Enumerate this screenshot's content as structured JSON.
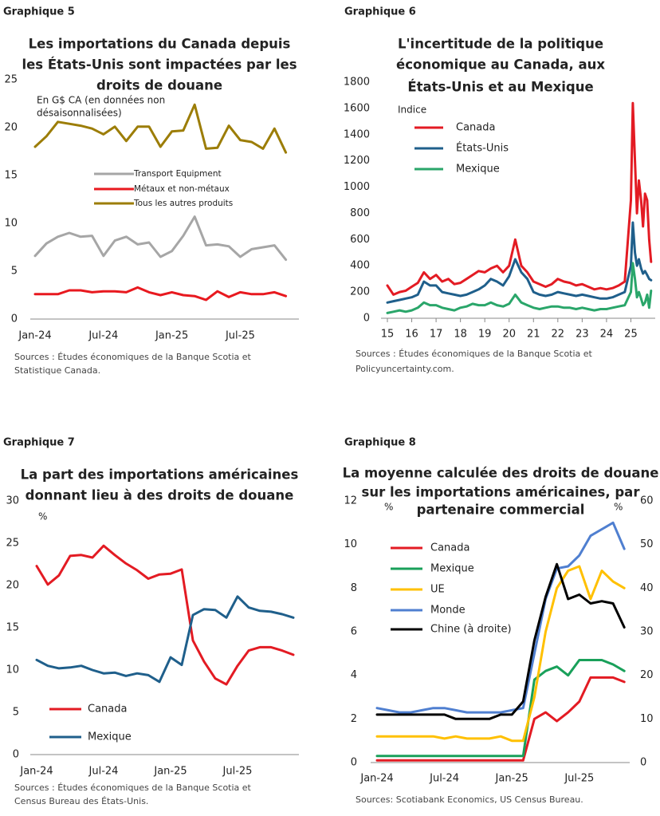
{
  "chart_data": [
    {
      "type": "line",
      "label": "Graphique 5",
      "title": [
        "Les importations du Canada depuis",
        "les États-Unis sont impactées par les",
        "droits de douane"
      ],
      "unit": [
        "En G$ CA (en données non",
        "désaisonnalisées)"
      ],
      "categories": [
        "Jan-24",
        null,
        null,
        null,
        null,
        null,
        "Jul-24",
        null,
        null,
        null,
        null,
        null,
        "Jan-25",
        null,
        null,
        null,
        null,
        null,
        "Jul-25",
        null,
        null,
        null,
        null
      ],
      "series": [
        {
          "name": "Transport Equipment",
          "color": "#a6a6a6",
          "values": [
            6.6,
            7.9,
            8.6,
            9.0,
            8.6,
            8.7,
            6.6,
            8.2,
            8.6,
            7.8,
            8.0,
            6.5,
            7.1,
            8.7,
            10.7,
            7.7,
            7.8,
            7.6,
            6.5,
            7.3,
            7.5,
            7.7,
            6.2
          ]
        },
        {
          "name": "Métaux et non-métaux",
          "color": "#e8191f",
          "values": [
            2.6,
            2.6,
            2.6,
            3.0,
            3.0,
            2.8,
            2.9,
            2.9,
            2.8,
            3.3,
            2.8,
            2.5,
            2.8,
            2.5,
            2.4,
            2.0,
            2.9,
            2.3,
            2.8,
            2.6,
            2.6,
            2.8,
            2.4
          ]
        },
        {
          "name": "Tous les autres produits",
          "color": "#9c7d07",
          "values": [
            18.0,
            19.1,
            20.6,
            20.4,
            20.2,
            19.9,
            19.3,
            20.1,
            18.6,
            20.1,
            20.1,
            18.0,
            19.6,
            19.7,
            22.4,
            17.8,
            17.9,
            20.2,
            18.7,
            18.5,
            17.8,
            19.9,
            17.4
          ]
        }
      ],
      "ylim": [
        0,
        25
      ],
      "yticks": [
        0,
        5,
        10,
        15,
        20,
        25
      ],
      "sources": [
        "Sources : Études économiques de la Banque Scotia et",
        "Statistique Canada."
      ]
    },
    {
      "type": "line",
      "label": "Graphique 6",
      "title": [
        "L'incertitude de la politique",
        "économique au Canada, aux",
        "États-Unis et au Mexique"
      ],
      "unit": [
        "Indice"
      ],
      "x": [
        15,
        15.25,
        15.5,
        15.75,
        16,
        16.25,
        16.5,
        16.75,
        17,
        17.25,
        17.5,
        17.75,
        18,
        18.25,
        18.5,
        18.75,
        19,
        19.25,
        19.5,
        19.75,
        20,
        20.25,
        20.5,
        20.75,
        21,
        21.25,
        21.5,
        21.75,
        22,
        22.25,
        22.5,
        22.75,
        23,
        23.25,
        23.5,
        23.75,
        24,
        24.25,
        24.5,
        24.75,
        25,
        25.08,
        25.17,
        25.25,
        25.33,
        25.42,
        25.5,
        25.58,
        25.67,
        25.75,
        25.83
      ],
      "series": [
        {
          "name": "Canada",
          "color": "#e31b23",
          "values": [
            250,
            180,
            200,
            210,
            240,
            270,
            350,
            300,
            330,
            280,
            300,
            260,
            270,
            300,
            330,
            360,
            350,
            380,
            400,
            350,
            400,
            600,
            400,
            350,
            280,
            260,
            240,
            260,
            300,
            280,
            270,
            250,
            260,
            240,
            220,
            230,
            220,
            230,
            250,
            280,
            900,
            1640,
            1200,
            800,
            1050,
            900,
            700,
            950,
            900,
            600,
            430
          ]
        },
        {
          "name": "États-Unis",
          "color": "#1f5f8b",
          "values": [
            120,
            130,
            140,
            150,
            160,
            180,
            280,
            250,
            250,
            200,
            190,
            180,
            170,
            180,
            200,
            220,
            250,
            300,
            280,
            250,
            320,
            450,
            350,
            300,
            200,
            180,
            170,
            180,
            200,
            190,
            180,
            170,
            180,
            170,
            160,
            150,
            150,
            160,
            180,
            200,
            400,
            730,
            500,
            400,
            450,
            380,
            340,
            360,
            330,
            300,
            290
          ]
        },
        {
          "name": "Mexique",
          "color": "#2aa66a",
          "values": [
            40,
            50,
            60,
            50,
            60,
            80,
            120,
            100,
            100,
            80,
            70,
            60,
            80,
            90,
            110,
            100,
            100,
            120,
            100,
            90,
            110,
            180,
            120,
            100,
            80,
            70,
            80,
            90,
            90,
            80,
            80,
            70,
            80,
            70,
            60,
            70,
            70,
            80,
            90,
            100,
            200,
            420,
            300,
            160,
            200,
            150,
            100,
            120,
            180,
            80,
            210
          ]
        }
      ],
      "xlim": [
        15,
        26
      ],
      "xticks": [
        15,
        16,
        17,
        18,
        19,
        20,
        21,
        22,
        23,
        24,
        25
      ],
      "ylim": [
        0,
        1800
      ],
      "yticks": [
        0,
        200,
        400,
        600,
        800,
        1000,
        1200,
        1400,
        1600,
        1800
      ],
      "sources": [
        "Sources : Études économiques de la Banque Scotia et",
        "Policyuncertainty.com."
      ]
    },
    {
      "type": "line",
      "label": "Graphique 7",
      "title": [
        "La part des importations américaines",
        "donnant lieu à des droits de douane"
      ],
      "unit": [
        "%"
      ],
      "categories": [
        "Jan-24",
        null,
        null,
        null,
        null,
        null,
        "Jul-24",
        null,
        null,
        null,
        null,
        null,
        "Jan-25",
        null,
        null,
        null,
        null,
        null,
        "Jul-25",
        null,
        null,
        null,
        null,
        null
      ],
      "series": [
        {
          "name": "Canada",
          "color": "#e31b23",
          "values": [
            22.3,
            20.1,
            21.2,
            23.5,
            23.6,
            23.3,
            24.7,
            23.6,
            22.6,
            21.8,
            20.8,
            21.3,
            21.4,
            21.9,
            13.5,
            11.0,
            9.0,
            8.3,
            10.5,
            12.3,
            12.7,
            12.7,
            12.3,
            11.8
          ]
        },
        {
          "name": "Mexique",
          "color": "#1f5f8b",
          "values": [
            11.2,
            10.5,
            10.2,
            10.3,
            10.5,
            10.0,
            9.6,
            9.7,
            9.3,
            9.6,
            9.4,
            8.6,
            11.5,
            10.6,
            16.5,
            17.2,
            17.1,
            16.2,
            18.7,
            17.4,
            17.0,
            16.9,
            16.6,
            16.2
          ]
        }
      ],
      "ylim": [
        0,
        30
      ],
      "yticks": [
        0,
        5,
        10,
        15,
        20,
        25,
        30
      ],
      "sources": [
        "Sources : Études économiques de la Banque Scotia et",
        "Census Bureau des États-Unis."
      ]
    },
    {
      "type": "line",
      "label": "Graphique 8",
      "title": [
        "La moyenne calculée des droits de douane",
        "sur les importations américaines, par",
        "partenaire commercial"
      ],
      "unit": [
        "%"
      ],
      "unit_right": "%",
      "categories": [
        "Jan-24",
        null,
        null,
        null,
        null,
        null,
        "Jul-24",
        null,
        null,
        null,
        null,
        null,
        "Jan-25",
        null,
        null,
        null,
        null,
        null,
        "Jul-25",
        null,
        null,
        null,
        null
      ],
      "series": [
        {
          "name": "Canada",
          "color": "#e31b23",
          "values": [
            0.1,
            0.1,
            0.1,
            0.1,
            0.1,
            0.1,
            0.1,
            0.1,
            0.1,
            0.1,
            0.1,
            0.1,
            0.1,
            0.1,
            2.0,
            2.3,
            1.9,
            2.3,
            2.8,
            3.9,
            3.9,
            3.9,
            3.7
          ]
        },
        {
          "name": "Mexique",
          "color": "#19a05a",
          "values": [
            0.3,
            0.3,
            0.3,
            0.3,
            0.3,
            0.3,
            0.3,
            0.3,
            0.3,
            0.3,
            0.3,
            0.3,
            0.3,
            0.3,
            3.8,
            4.2,
            4.4,
            4.0,
            4.7,
            4.7,
            4.7,
            4.5,
            4.2
          ]
        },
        {
          "name": "UE",
          "color": "#ffc000",
          "values": [
            1.2,
            1.2,
            1.2,
            1.2,
            1.2,
            1.2,
            1.1,
            1.2,
            1.1,
            1.1,
            1.1,
            1.2,
            1.0,
            1.0,
            3.0,
            6.0,
            8.0,
            8.8,
            9.0,
            7.5,
            8.8,
            8.3,
            8.0
          ]
        },
        {
          "name": "Monde",
          "color": "#4f7fd0",
          "values": [
            2.5,
            2.4,
            2.3,
            2.3,
            2.4,
            2.5,
            2.5,
            2.4,
            2.3,
            2.3,
            2.3,
            2.3,
            2.4,
            2.5,
            5.0,
            7.5,
            8.9,
            9.0,
            9.5,
            10.4,
            10.7,
            11.0,
            9.8
          ]
        },
        {
          "name": "Chine (à droite)",
          "color": "#000000",
          "axis": "y2",
          "values": [
            11,
            11,
            11,
            11,
            11,
            11,
            11,
            10,
            10,
            10,
            10,
            11,
            11,
            14,
            28,
            38,
            45.5,
            37.5,
            38.5,
            36.5,
            37,
            36.5,
            31
          ]
        }
      ],
      "ylim": [
        0,
        12
      ],
      "yticks": [
        0,
        2,
        4,
        6,
        8,
        10,
        12
      ],
      "y2lim": [
        0,
        60
      ],
      "y2ticks": [
        0,
        10,
        20,
        30,
        40,
        50,
        60
      ],
      "sources": [
        "Sources: Scotiabank Economics, US Census Bureau."
      ]
    }
  ]
}
